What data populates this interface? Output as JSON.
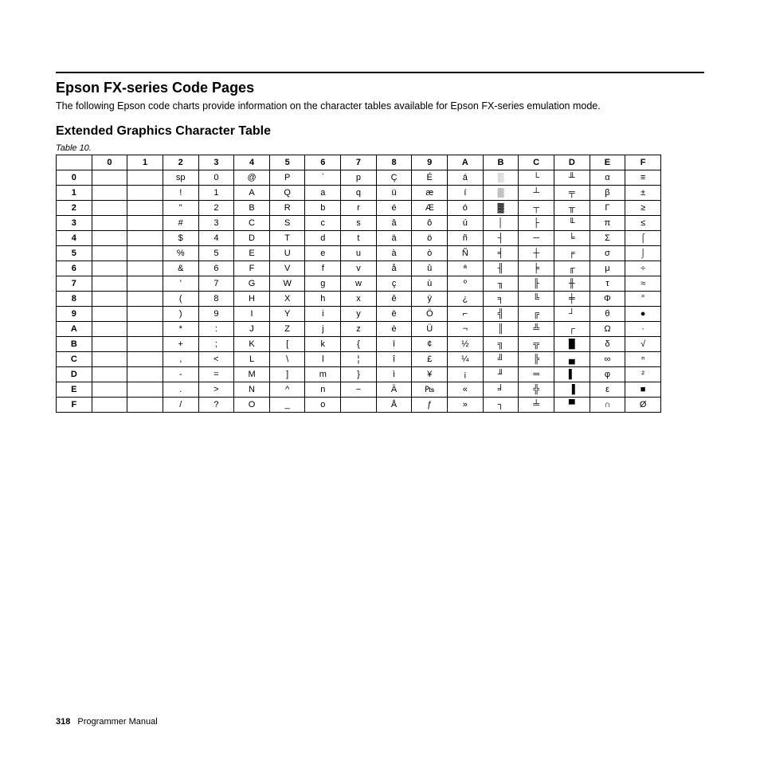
{
  "heading1": "Epson FX-series Code Pages",
  "intro": "The following Epson code charts provide information on the character tables available for Epson FX-series emulation mode.",
  "heading2": "Extended Graphics Character Table",
  "table_label": "Table 10.",
  "footer_page": "318",
  "footer_text": "Programmer Manual",
  "col_headers": [
    "0",
    "1",
    "2",
    "3",
    "4",
    "5",
    "6",
    "7",
    "8",
    "9",
    "A",
    "B",
    "C",
    "D",
    "E",
    "F"
  ],
  "row_headers": [
    "0",
    "1",
    "2",
    "3",
    "4",
    "5",
    "6",
    "7",
    "8",
    "9",
    "A",
    "B",
    "C",
    "D",
    "E",
    "F"
  ],
  "cells": [
    [
      "",
      "",
      "sp",
      "0",
      "@",
      "P",
      "`",
      "p",
      "Ç",
      "É",
      "á",
      "░",
      "└",
      "╨",
      "α",
      "≡"
    ],
    [
      "",
      "",
      "!",
      "1",
      "A",
      "Q",
      "a",
      "q",
      "ü",
      "æ",
      "í",
      "▒",
      "┴",
      "╤",
      "β",
      "±"
    ],
    [
      "",
      "",
      "\"",
      "2",
      "B",
      "R",
      "b",
      "r",
      "é",
      "Æ",
      "ó",
      "▓",
      "┬",
      "╥",
      "Γ",
      "≥"
    ],
    [
      "",
      "",
      "#",
      "3",
      "C",
      "S",
      "c",
      "s",
      "â",
      "ô",
      "ú",
      "│",
      "├",
      "╙",
      "π",
      "≤"
    ],
    [
      "",
      "",
      "$",
      "4",
      "D",
      "T",
      "d",
      "t",
      "ä",
      "ö",
      "ñ",
      "┤",
      "─",
      "╘",
      "Σ",
      "⌠"
    ],
    [
      "",
      "",
      "%",
      "5",
      "E",
      "U",
      "e",
      "u",
      "à",
      "ò",
      "Ñ",
      "╡",
      "┼",
      "╒",
      "σ",
      "⌡"
    ],
    [
      "",
      "",
      "&",
      "6",
      "F",
      "V",
      "f",
      "v",
      "å",
      "û",
      "ª",
      "╢",
      "╞",
      "╓",
      "μ",
      "÷"
    ],
    [
      "",
      "",
      "'",
      "7",
      "G",
      "W",
      "g",
      "w",
      "ç",
      "ù",
      "º",
      "╖",
      "╟",
      "╫",
      "τ",
      "≈"
    ],
    [
      "",
      "",
      "(",
      "8",
      "H",
      "X",
      "h",
      "x",
      "ê",
      "ÿ",
      "¿",
      "╕",
      "╚",
      "╪",
      "Φ",
      "°"
    ],
    [
      "",
      "",
      ")",
      "9",
      "I",
      "Y",
      "i",
      "y",
      "ë",
      "Ö",
      "⌐",
      "╣",
      "╔",
      "┘",
      "θ",
      "●"
    ],
    [
      "",
      "",
      "*",
      ":",
      "J",
      "Z",
      "j",
      "z",
      "è",
      "Ü",
      "¬",
      "║",
      "╩",
      "┌",
      "Ω",
      "·"
    ],
    [
      "",
      "",
      "+",
      ";",
      "K",
      "[",
      "k",
      "{",
      "ï",
      "¢",
      "½",
      "╗",
      "╦",
      "█",
      "δ",
      "√"
    ],
    [
      "",
      "",
      ",",
      "<",
      "L",
      "\\",
      "l",
      "¦",
      "î",
      "£",
      "¼",
      "╝",
      "╠",
      "▄",
      "∞",
      "ⁿ"
    ],
    [
      "",
      "",
      "-",
      "=",
      "M",
      "]",
      "m",
      "}",
      "ì",
      "¥",
      "¡",
      "╜",
      "═",
      "▌",
      "φ",
      "²"
    ],
    [
      "",
      "",
      ".",
      ">",
      "N",
      "^",
      "n",
      "−",
      "Ä",
      "₧",
      "«",
      "╛",
      "╬",
      "▐",
      "ε",
      "■"
    ],
    [
      "",
      "",
      "/",
      "?",
      "O",
      "_",
      "o",
      "",
      "Å",
      "ƒ",
      "»",
      "┐",
      "╧",
      "▀",
      "∩",
      "Ø"
    ]
  ]
}
